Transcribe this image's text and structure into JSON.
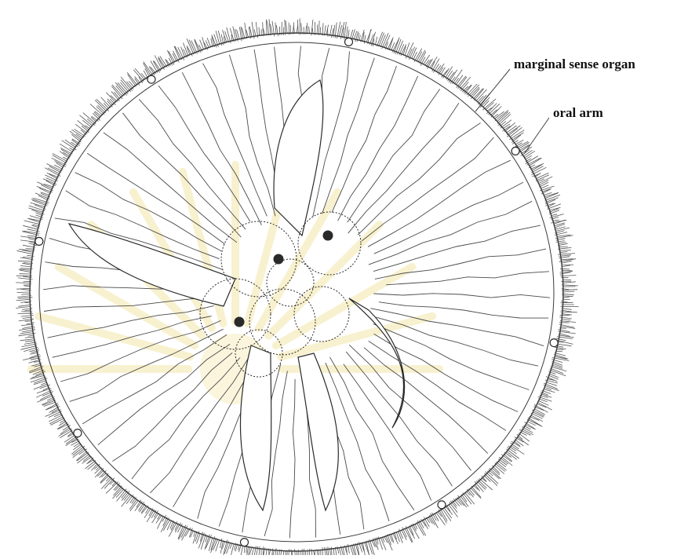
{
  "labels": {
    "marginal_sense_organ": "marginal sense organ",
    "oral_arm": "oral arm"
  },
  "colors": {
    "background": "#ffffff",
    "ink": "#2a2a2a",
    "fringe": "#555555",
    "watermark": "#f3e6a8"
  },
  "watermark_lettering": "จุฬาลงกรณ์มหาวิทยาลัย"
}
